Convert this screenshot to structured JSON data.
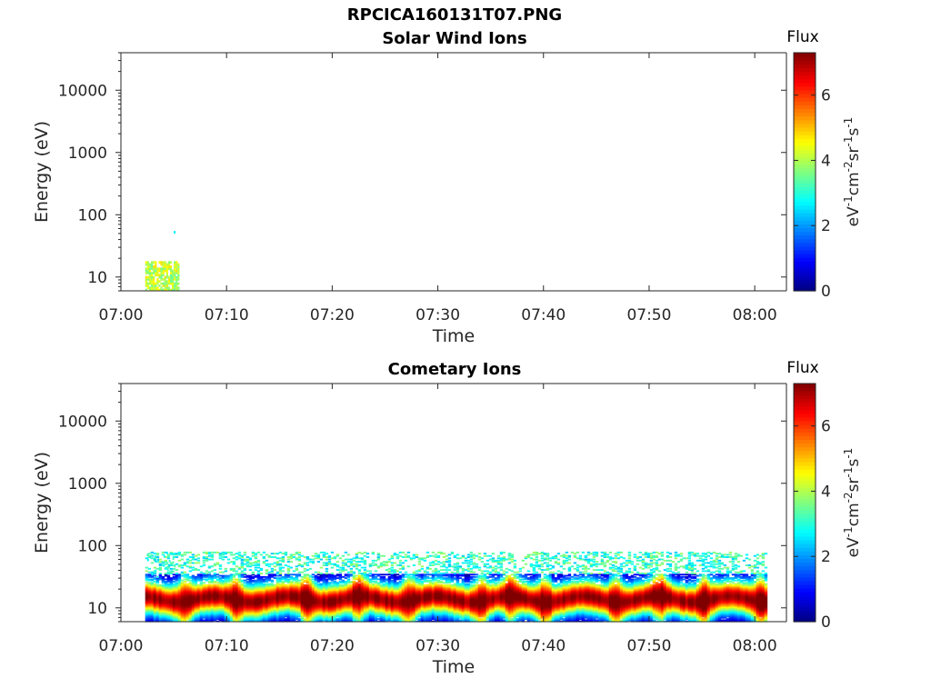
{
  "figure_title": "RPCICA160131T07.PNG",
  "chart_data": [
    {
      "type": "heatmap",
      "title": "Solar Wind Ions",
      "xlabel": "Time",
      "ylabel": "Energy (eV)",
      "x_ticks": [
        "07:00",
        "07:10",
        "07:20",
        "07:30",
        "07:40",
        "07:50",
        "08:00"
      ],
      "x_range_minutes": [
        0,
        63
      ],
      "y_scale": "log",
      "y_ticks": [
        10,
        100,
        1000,
        10000
      ],
      "ylim": [
        6,
        40000
      ],
      "colorbar": {
        "title": "Flux",
        "label": "eV-1cm-2sr-1s-1",
        "ticks": [
          0,
          2,
          4,
          6
        ],
        "range": [
          0,
          7.3
        ],
        "colormap": "jet"
      },
      "regions": [
        {
          "t_start_min": 2.3,
          "t_end_min": 5.5,
          "e_low": 6,
          "e_high": 18,
          "flux_level": 4.0,
          "note": "burst"
        }
      ]
    },
    {
      "type": "heatmap",
      "title": "Cometary Ions",
      "xlabel": "Time",
      "ylabel": "Energy (eV)",
      "x_ticks": [
        "07:00",
        "07:10",
        "07:20",
        "07:30",
        "07:40",
        "07:50",
        "08:00"
      ],
      "x_range_minutes": [
        0,
        63
      ],
      "y_scale": "log",
      "y_ticks": [
        10,
        100,
        1000,
        10000
      ],
      "ylim": [
        6,
        40000
      ],
      "colorbar": {
        "title": "Flux",
        "label": "eV-1cm-2sr-1s-1",
        "ticks": [
          0,
          2,
          4,
          6
        ],
        "range": [
          0,
          7.3
        ],
        "colormap": "jet"
      },
      "data_start_min": 2.3,
      "data_end_min": 61,
      "peak_band_energy": [
        8,
        30
      ],
      "peak_flux": 7.2,
      "max_energy_eV": 80
    }
  ]
}
